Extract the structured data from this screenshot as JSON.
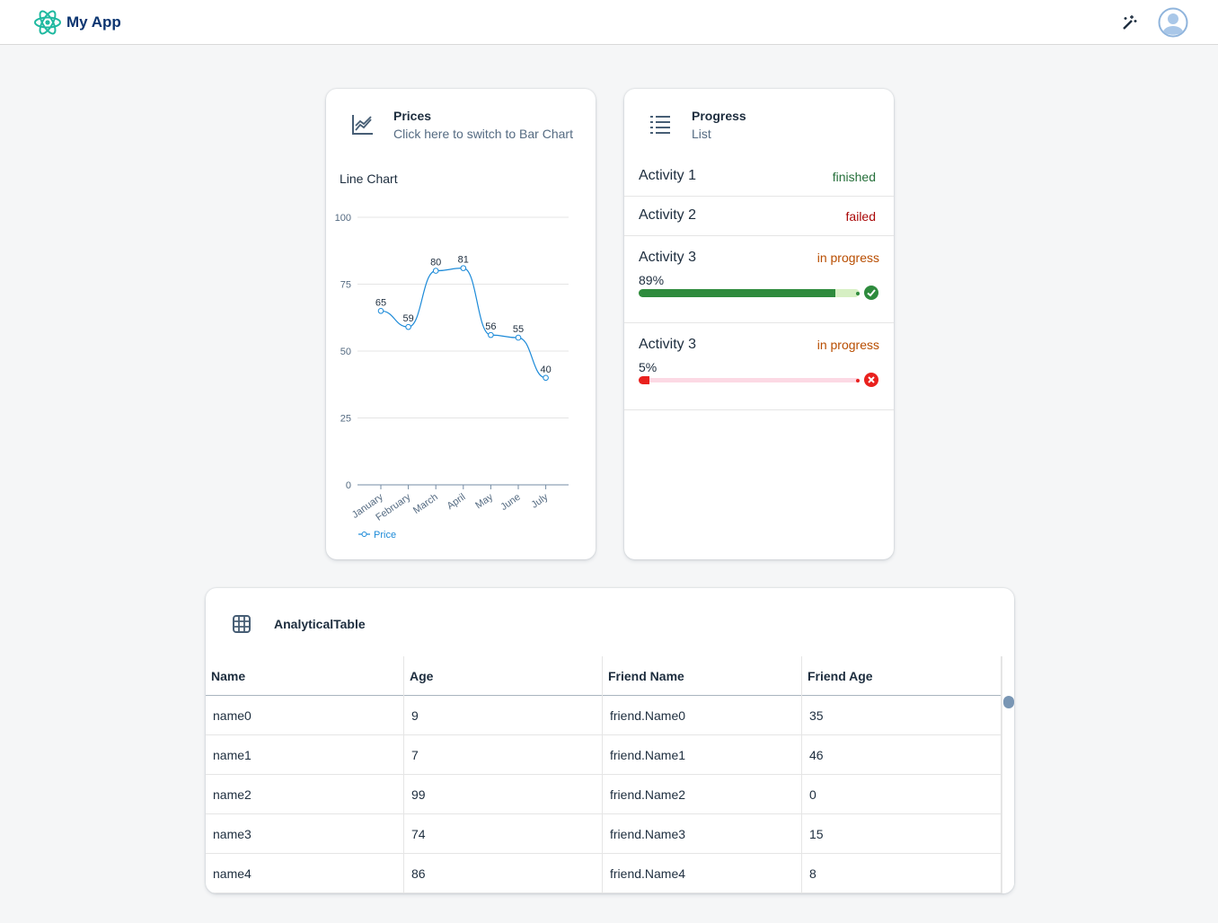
{
  "header": {
    "title": "My App"
  },
  "prices_card": {
    "title": "Prices",
    "subtitle": "Click here to switch to Bar Chart"
  },
  "chart_data": {
    "type": "line",
    "title": "Line Chart",
    "categories": [
      "January",
      "February",
      "March",
      "April",
      "May",
      "June",
      "July"
    ],
    "series": [
      {
        "name": "Price",
        "color": "#1c8ad8",
        "values": [
          65,
          59,
          80,
          81,
          56,
          55,
          40
        ]
      }
    ],
    "ylim": [
      0,
      100
    ],
    "yticks": [
      0,
      25,
      50,
      75,
      100
    ],
    "grid": true,
    "data_labels": true
  },
  "progress_card": {
    "title": "Progress",
    "subtitle": "List",
    "items": [
      {
        "name": "Activity 1",
        "status": "finished"
      },
      {
        "name": "Activity 2",
        "status": "failed"
      },
      {
        "name": "Activity 3",
        "status": "in progress",
        "progress": 89,
        "progress_label": "89%"
      },
      {
        "name": "Activity 3",
        "status": "in progress",
        "progress": 5,
        "progress_label": "5%"
      }
    ]
  },
  "table_card": {
    "title": "AnalyticalTable",
    "columns": [
      "Name",
      "Age",
      "Friend Name",
      "Friend Age"
    ],
    "rows": [
      [
        "name0",
        9,
        "friend.Name0",
        35
      ],
      [
        "name1",
        7,
        "friend.Name1",
        46
      ],
      [
        "name2",
        99,
        "friend.Name2",
        0
      ],
      [
        "name3",
        74,
        "friend.Name3",
        15
      ],
      [
        "name4",
        86,
        "friend.Name4",
        8
      ]
    ]
  }
}
